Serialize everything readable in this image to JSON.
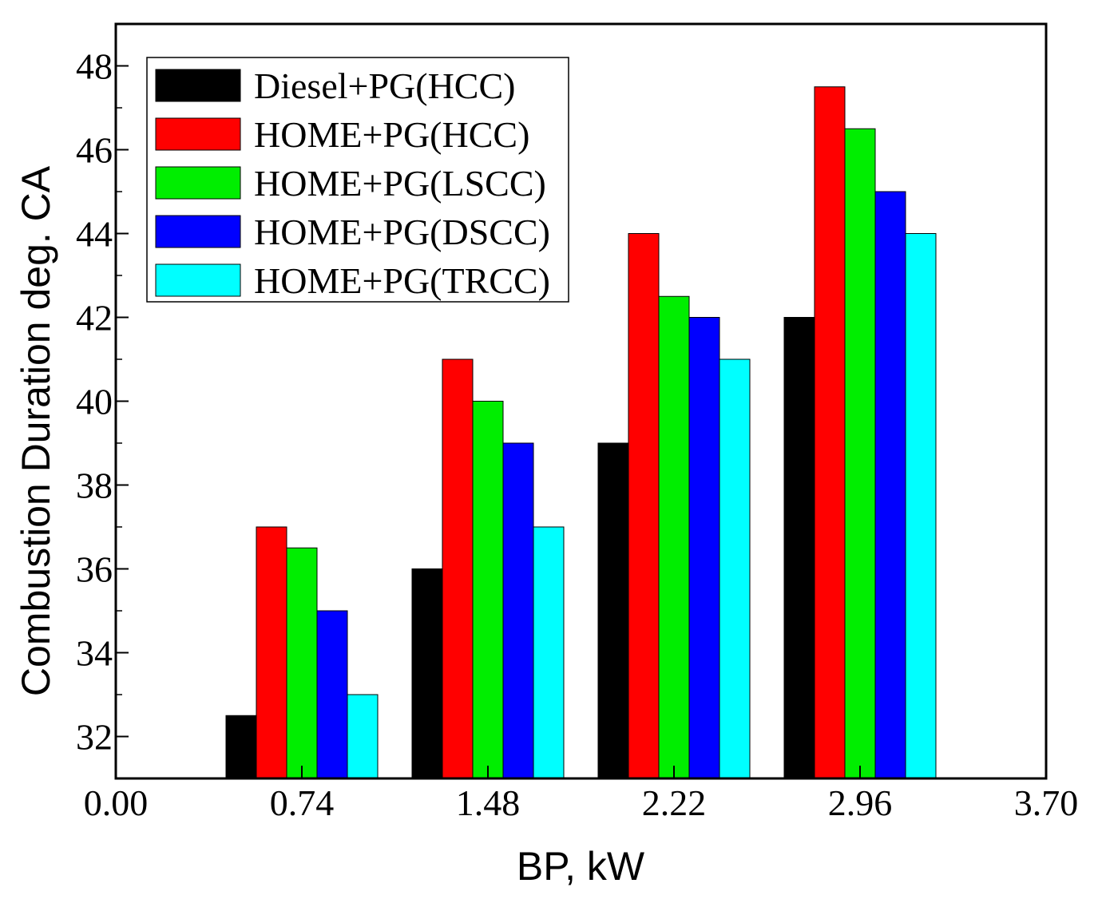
{
  "chart_data": {
    "type": "bar",
    "title": "",
    "xlabel": "BP, kW",
    "ylabel": "Combustion Duration deg. CA",
    "xlim": [
      0.0,
      3.7
    ],
    "ylim": [
      31.0,
      49.0
    ],
    "x_ticks": [
      "0.00",
      "0.74",
      "1.48",
      "2.22",
      "2.96",
      "3.70"
    ],
    "y_ticks": [
      "32",
      "34",
      "36",
      "38",
      "40",
      "42",
      "44",
      "46",
      "48"
    ],
    "categories": [
      0.74,
      1.48,
      2.22,
      2.96
    ],
    "series": [
      {
        "name": "Diesel+PG(HCC)",
        "color": "#000000",
        "values": [
          32.5,
          36,
          39,
          42
        ]
      },
      {
        "name": "HOME+PG(HCC)",
        "color": "#ff0000",
        "values": [
          37,
          41,
          44,
          47.5
        ]
      },
      {
        "name": "HOME+PG(LSCC)",
        "color": "#00ee00",
        "values": [
          36.5,
          40,
          42.5,
          46.5
        ]
      },
      {
        "name": "HOME+PG(DSCC)",
        "color": "#0000ff",
        "values": [
          35,
          39,
          42,
          45
        ]
      },
      {
        "name": "HOME+PG(TRCC)",
        "color": "#00ffff",
        "values": [
          33,
          37,
          41,
          44
        ]
      }
    ],
    "legend_position": "top-left",
    "grid": false
  }
}
